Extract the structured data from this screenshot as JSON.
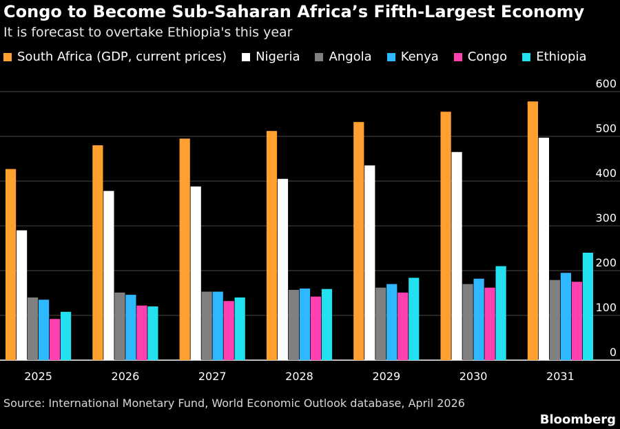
{
  "header": {
    "title": "Congo to Become Sub-Saharan Africa’s Fifth-Largest Economy",
    "subtitle": "It is forecast to overtake Ethiopia's this year"
  },
  "legend": [
    {
      "label": "South Africa (GDP, current prices)",
      "color": "#ffa030"
    },
    {
      "label": "Nigeria",
      "color": "#ffffff"
    },
    {
      "label": "Angola",
      "color": "#808080"
    },
    {
      "label": "Kenya",
      "color": "#2eb8ff"
    },
    {
      "label": "Congo",
      "color": "#ff40b0"
    },
    {
      "label": "Ethiopia",
      "color": "#22e0f0"
    }
  ],
  "footer": {
    "source": "Source: International Monetary Fund, World Economic Outlook database, April 2026",
    "brand": "Bloomberg"
  },
  "chart_data": {
    "type": "bar",
    "categories": [
      "2025",
      "2026",
      "2027",
      "2028",
      "2029",
      "2030",
      "2031"
    ],
    "series": [
      {
        "name": "South Africa (GDP, current prices)",
        "color": "#ffa030",
        "values": [
          427,
          480,
          495,
          512,
          532,
          555,
          578
        ]
      },
      {
        "name": "Nigeria",
        "color": "#ffffff",
        "values": [
          290,
          378,
          388,
          405,
          435,
          465,
          497
        ]
      },
      {
        "name": "Angola",
        "color": "#808080",
        "values": [
          140,
          151,
          153,
          157,
          162,
          170,
          179
        ]
      },
      {
        "name": "Kenya",
        "color": "#2eb8ff",
        "values": [
          135,
          146,
          153,
          160,
          170,
          182,
          195
        ]
      },
      {
        "name": "Congo",
        "color": "#ff40b0",
        "values": [
          92,
          122,
          132,
          142,
          151,
          162,
          175
        ]
      },
      {
        "name": "Ethiopia",
        "color": "#22e0f0",
        "values": [
          108,
          120,
          140,
          159,
          184,
          210,
          240
        ]
      }
    ],
    "ylim": [
      0,
      600
    ],
    "yticks": [
      0,
      100,
      200,
      300,
      400,
      500,
      600
    ],
    "grid": true,
    "y_axis_side": "right",
    "legend_position": "top"
  }
}
